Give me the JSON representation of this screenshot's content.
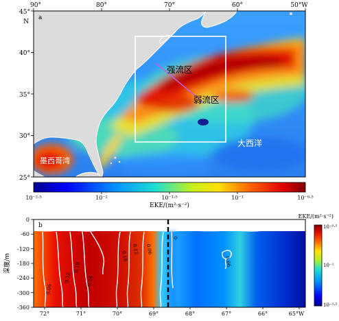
{
  "panel_a": {
    "label": "a",
    "lon_labels": [
      "90°",
      "80°",
      "70°",
      "60°",
      "50°W"
    ],
    "lat_labels": [
      "45°",
      "40°",
      "35°",
      "30°",
      "25°"
    ],
    "lat_north": "N",
    "region_labels": {
      "strong": "强流区",
      "weak": "弱流区",
      "ocean": "大西洋",
      "gulf": "墨西哥湾"
    },
    "colorbar": {
      "tick_labels": [
        "10⁻²·⁵",
        "10⁻²",
        "10⁻¹·⁵",
        "10⁻¹",
        "10⁻⁰·⁵"
      ],
      "title": "EKE/(m²·s⁻²)"
    }
  },
  "panel_b": {
    "label": "b",
    "y_axis_label": "深度/m",
    "y_ticks": [
      "0",
      "-60",
      "-120",
      "-180",
      "-240",
      "-300",
      "-360"
    ],
    "x_ticks": [
      "72°",
      "71°",
      "70°",
      "69°",
      "68°",
      "67°",
      "66°",
      "65°W"
    ],
    "contour_labels": [
      "0.06",
      "0.12",
      "0.18",
      "0.24",
      "0.18",
      "0.12",
      "0.06",
      "0",
      "0.06"
    ],
    "colorbar": {
      "title": "EKE/(m²·s⁻²)",
      "tick_labels": [
        "10⁻⁰·⁵",
        "10⁻¹",
        "10⁻¹·⁵"
      ]
    }
  },
  "colors": {
    "land": "#dcdcdc",
    "frame": "#ffffff",
    "section_line": "#c060e0"
  }
}
